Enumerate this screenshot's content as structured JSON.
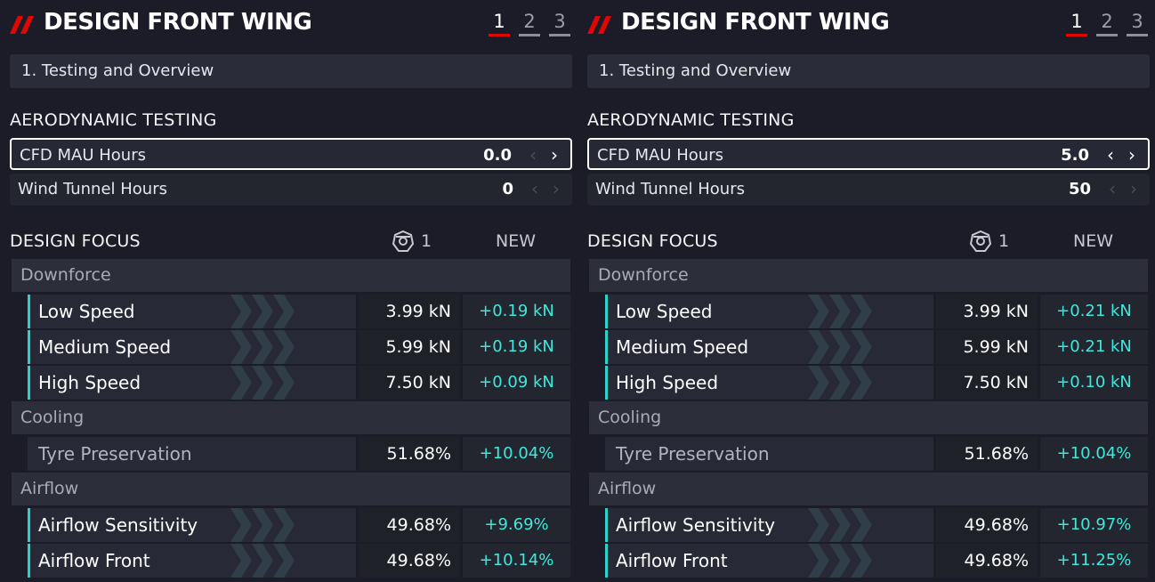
{
  "panels": [
    {
      "title": "DESIGN FRONT WING",
      "pages": [
        "1",
        "2",
        "3"
      ],
      "active_page": 0,
      "stage": "1. Testing and Overview",
      "aero_label": "AERODYNAMIC TESTING",
      "cfd_label": "CFD MAU Hours",
      "cfd_value": "0.0",
      "wind_label": "Wind Tunnel Hours",
      "wind_value": "0",
      "focus_label": "DESIGN FOCUS",
      "col_current": "1",
      "col_new": "NEW",
      "downforce": "Downforce",
      "low_speed": "Low Speed",
      "low_speed_cur": "3.99 kN",
      "low_speed_new": "+0.19 kN",
      "medium_speed": "Medium Speed",
      "medium_speed_cur": "5.99 kN",
      "medium_speed_new": "+0.19 kN",
      "high_speed": "High Speed",
      "high_speed_cur": "7.50 kN",
      "high_speed_new": "+0.09 kN",
      "cooling": "Cooling",
      "tyre": "Tyre Preservation",
      "tyre_cur": "51.68%",
      "tyre_new": "+10.04%",
      "airflow": "Airflow",
      "airflow_sens": "Airflow Sensitivity",
      "airflow_sens_cur": "49.68%",
      "airflow_sens_new": "+9.69%",
      "airflow_front": "Airflow Front",
      "airflow_front_cur": "49.68%",
      "airflow_front_new": "+10.14%"
    },
    {
      "title": "DESIGN FRONT WING",
      "pages": [
        "1",
        "2",
        "3"
      ],
      "active_page": 0,
      "stage": "1. Testing and Overview",
      "aero_label": "AERODYNAMIC TESTING",
      "cfd_label": "CFD MAU Hours",
      "cfd_value": "5.0",
      "wind_label": "Wind Tunnel Hours",
      "wind_value": "50",
      "focus_label": "DESIGN FOCUS",
      "col_current": "1",
      "col_new": "NEW",
      "downforce": "Downforce",
      "low_speed": "Low Speed",
      "low_speed_cur": "3.99 kN",
      "low_speed_new": "+0.21 kN",
      "medium_speed": "Medium Speed",
      "medium_speed_cur": "5.99 kN",
      "medium_speed_new": "+0.21 kN",
      "high_speed": "High Speed",
      "high_speed_cur": "7.50 kN",
      "high_speed_new": "+0.10 kN",
      "cooling": "Cooling",
      "tyre": "Tyre Preservation",
      "tyre_cur": "51.68%",
      "tyre_new": "+10.04%",
      "airflow": "Airflow",
      "airflow_sens": "Airflow Sensitivity",
      "airflow_sens_cur": "49.68%",
      "airflow_sens_new": "+10.97%",
      "airflow_front": "Airflow Front",
      "airflow_front_cur": "49.68%",
      "airflow_front_new": "+11.25%"
    }
  ],
  "colors": {
    "background": "#1b1c27",
    "accent_red": "#e10600",
    "accent_cyan": "#3ee8dc",
    "bar_teal": "#2ad2c9"
  },
  "icons": [
    "f1-slash-logo",
    "car-front-icon",
    "chevron-left-icon",
    "chevron-right-icon"
  ]
}
